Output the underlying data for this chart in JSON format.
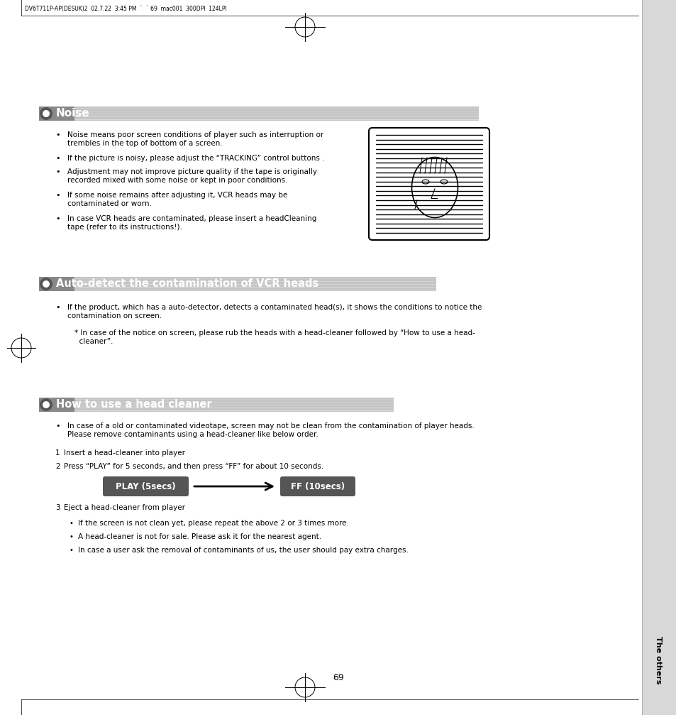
{
  "bg_color": "#ffffff",
  "sidebar_color": "#d8d8d8",
  "header_text": "DV6T711P-AP(DESUK)2  02.7.22  3:45 PM  `  ` 69  mac001  300DPI  124LPI",
  "page_number": "69",
  "section1_title": "Noise",
  "section1_bullets": [
    "Noise means poor screen conditions of player such as interruption or\ntrembles in the top of bottom of a screen.",
    "If the picture is noisy, please adjust the “TRACKING” control buttons .",
    "Adjustment may not improve picture quality if the tape is originally\nrecorded mixed with some noise or kept in poor conditions.",
    "If some noise remains after adjusting it, VCR heads may be\ncontaminated or worn.",
    "In case VCR heads are contaminated, please insert a headCleaning\ntape (refer to its instructions!)."
  ],
  "section2_title": "Auto-detect the contamination of VCR heads",
  "section2_bullet": "If the product, which has a auto-detector, detects a contaminated head(s), it shows the conditions to notice the\ncontamination on screen.",
  "section2_note": "* In case of the notice on screen, please rub the heads with a head-cleaner followed by “How to use a head-\n  cleaner”.",
  "section3_title": "How to use a head cleaner",
  "section3_bullet": "In case of a old or contaminated videotape, screen may not be clean from the contamination of player heads.\nPlease remove contaminants using a head-cleaner like below order.",
  "step1": "Insert a head-cleaner into player",
  "step2": "Press “PLAY” for 5 seconds, and then press “FF” for about 10 seconds.",
  "step3": "Eject a head-cleaner from player",
  "play_label": "PLAY (5secs)",
  "ff_label": "FF (10secs)",
  "sub_bullet1": "If the screen is not clean yet, please repeat the above 2 or 3 times more.",
  "sub_bullet2": "A head-cleaner is not for sale. Please ask it for the nearest agent.",
  "sub_bullet3": "In case a user ask the removal of contaminants of us, the user should pay extra charges.",
  "sidebar_label": "The others",
  "header_bar_dark": "#888888",
  "header_bar_light": "#c8c8c8",
  "btn_color": "#555555"
}
